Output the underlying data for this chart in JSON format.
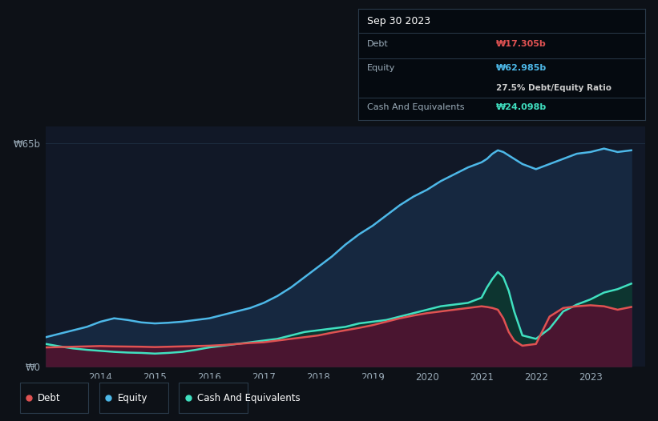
{
  "background_color": "#0d1117",
  "plot_bg_color": "#111827",
  "title": "Sep 30 2023",
  "tooltip_debt": "₩17.305b",
  "tooltip_equity": "₩62.985b",
  "tooltip_ratio": "27.5% Debt/Equity Ratio",
  "tooltip_cash": "₩24.098b",
  "ylabel_top": "₩65b",
  "ylabel_bottom": "₩0",
  "legend": [
    "Debt",
    "Equity",
    "Cash And Equivalents"
  ],
  "debt_color": "#e05252",
  "equity_color": "#4db8e8",
  "cash_color": "#40e0c0",
  "equity_fill_color": "#162840",
  "debt_fill_color": "#4a1530",
  "cash_fill_color": "#0d3530",
  "grid_color": "#1e2d40",
  "years": [
    2013.0,
    2013.25,
    2013.5,
    2013.75,
    2014.0,
    2014.25,
    2014.5,
    2014.75,
    2015.0,
    2015.25,
    2015.5,
    2015.75,
    2016.0,
    2016.25,
    2016.5,
    2016.75,
    2017.0,
    2017.25,
    2017.5,
    2017.75,
    2018.0,
    2018.25,
    2018.5,
    2018.75,
    2019.0,
    2019.25,
    2019.5,
    2019.75,
    2020.0,
    2020.25,
    2020.5,
    2020.75,
    2021.0,
    2021.1,
    2021.2,
    2021.3,
    2021.4,
    2021.5,
    2021.6,
    2021.75,
    2022.0,
    2022.25,
    2022.5,
    2022.75,
    2023.0,
    2023.25,
    2023.5,
    2023.75
  ],
  "equity": [
    8.5,
    9.5,
    10.5,
    11.5,
    13.0,
    14.0,
    13.5,
    12.8,
    12.5,
    12.7,
    13.0,
    13.5,
    14.0,
    15.0,
    16.0,
    17.0,
    18.5,
    20.5,
    23.0,
    26.0,
    29.0,
    32.0,
    35.5,
    38.5,
    41.0,
    44.0,
    47.0,
    49.5,
    51.5,
    54.0,
    56.0,
    58.0,
    59.5,
    60.5,
    62.0,
    63.0,
    62.5,
    61.5,
    60.5,
    59.0,
    57.5,
    59.0,
    60.5,
    62.0,
    62.5,
    63.5,
    62.5,
    63.0
  ],
  "debt": [
    5.5,
    5.6,
    5.7,
    5.8,
    5.9,
    5.8,
    5.75,
    5.7,
    5.6,
    5.7,
    5.8,
    5.9,
    6.0,
    6.2,
    6.5,
    6.8,
    7.0,
    7.5,
    8.0,
    8.5,
    9.0,
    9.8,
    10.5,
    11.2,
    12.0,
    13.0,
    14.0,
    14.8,
    15.5,
    16.0,
    16.5,
    17.0,
    17.5,
    17.3,
    17.0,
    16.5,
    14.0,
    10.0,
    7.5,
    6.0,
    6.5,
    14.5,
    17.0,
    17.5,
    17.8,
    17.5,
    16.5,
    17.3
  ],
  "cash": [
    6.5,
    5.8,
    5.2,
    4.8,
    4.5,
    4.2,
    4.0,
    3.9,
    3.7,
    3.9,
    4.2,
    4.8,
    5.5,
    6.0,
    6.5,
    7.0,
    7.5,
    8.0,
    9.0,
    10.0,
    10.5,
    11.0,
    11.5,
    12.5,
    13.0,
    13.5,
    14.5,
    15.5,
    16.5,
    17.5,
    18.0,
    18.5,
    20.0,
    23.0,
    25.5,
    27.5,
    26.0,
    22.0,
    16.0,
    9.0,
    8.0,
    11.0,
    16.0,
    18.0,
    19.5,
    21.5,
    22.5,
    24.1
  ],
  "ylim": [
    0,
    70
  ],
  "xlim": [
    2013.0,
    2024.0
  ],
  "xtick_positions": [
    2014,
    2015,
    2016,
    2017,
    2018,
    2019,
    2020,
    2021,
    2022,
    2023
  ],
  "ytick_positions": [
    0,
    65
  ],
  "figsize": [
    8.21,
    5.26
  ],
  "dpi": 100
}
